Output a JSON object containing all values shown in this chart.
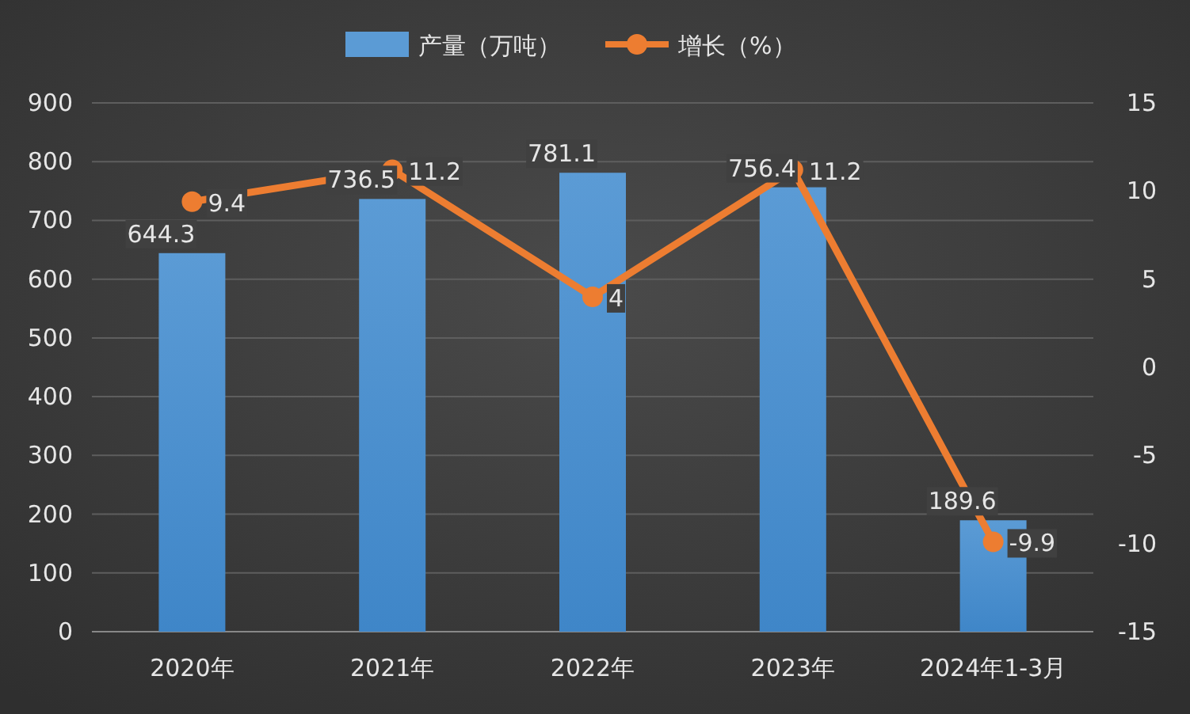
{
  "chart_data": {
    "type": "bar",
    "categories": [
      "2020年",
      "2021年",
      "2022年",
      "2023年",
      "2024年1-3月"
    ],
    "series": [
      {
        "name": "产量（万吨）",
        "color": "#5b9bd5",
        "values": [
          644.3,
          736.5,
          781.1,
          756.4,
          189.6
        ]
      },
      {
        "name": "增长（%）",
        "type": "line",
        "axis": "y2",
        "color": "#ed7d31",
        "marker": "circle",
        "values": [
          9.4,
          11.2,
          4,
          11.2,
          -9.9
        ]
      }
    ],
    "ylim": [
      0,
      900
    ],
    "yticks": [
      0,
      100,
      200,
      300,
      400,
      500,
      600,
      700,
      800,
      900
    ],
    "y2lim": [
      -15,
      15
    ],
    "y2ticks": [
      -15,
      -10,
      -5,
      0,
      5,
      10,
      15
    ],
    "grid": "y",
    "legend": "top",
    "data_labels": true
  }
}
